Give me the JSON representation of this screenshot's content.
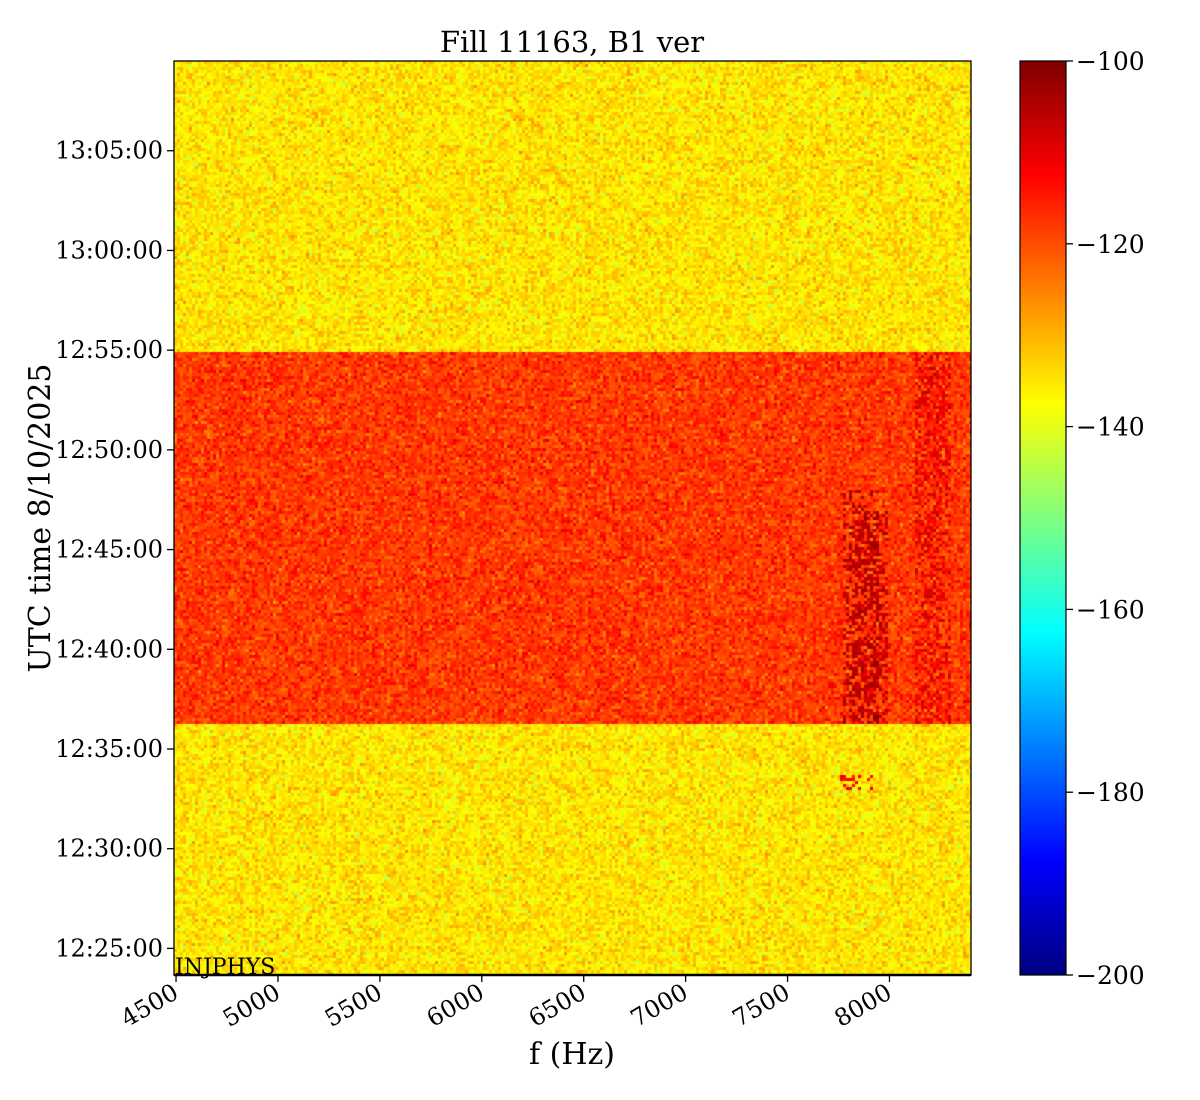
{
  "chart_data": {
    "type": "heatmap",
    "title": "Fill 11163, B1 ver",
    "xlabel": "f (Hz)",
    "ylabel": "UTC time 8/10/2025",
    "x_ticks": [
      4500,
      5000,
      5500,
      6000,
      6500,
      7000,
      7500,
      8000
    ],
    "x_tick_labels": [
      "4500",
      "5000",
      "5500",
      "6000",
      "6500",
      "7000",
      "7500",
      "8000"
    ],
    "xlim": [
      4490,
      8400
    ],
    "y_ticks": [
      "12:25:00",
      "12:30:00",
      "12:35:00",
      "12:40:00",
      "12:45:00",
      "12:50:00",
      "12:55:00",
      "13:00:00",
      "13:05:00"
    ],
    "y_tick_labels": [
      "12:25:00",
      "12:30:00",
      "12:35:00",
      "12:40:00",
      "12:45:00",
      "12:50:00",
      "12:55:00",
      "13:00:00",
      "13:05:00"
    ],
    "ylim": [
      "12:23:40",
      "13:09:30"
    ],
    "colorbar": {
      "colormap": "jet",
      "min": -200,
      "max": -100,
      "ticks": [
        -100,
        -120,
        -140,
        -160,
        -180,
        -200
      ],
      "tick_labels": [
        "−100",
        "−120",
        "−140",
        "−160",
        "−180",
        "−200"
      ]
    },
    "background_level": -135,
    "bands": [
      {
        "t_start": "12:36:20",
        "t_end": "12:55:00",
        "level": -118
      }
    ],
    "features": [
      {
        "f": 7850,
        "t_start": "12:36:20",
        "t_end": "12:48:00",
        "level": -105
      },
      {
        "f": 7900,
        "t_start": "12:36:20",
        "t_end": "12:47:00",
        "level": -106
      },
      {
        "f": 8200,
        "t_start": "12:36:20",
        "t_end": "12:55:00",
        "level": -110
      },
      {
        "f": 7830,
        "t_start": "12:33:00",
        "t_end": "12:33:50",
        "level": -112
      }
    ],
    "annotation": "INJPHYS",
    "grid": false
  }
}
